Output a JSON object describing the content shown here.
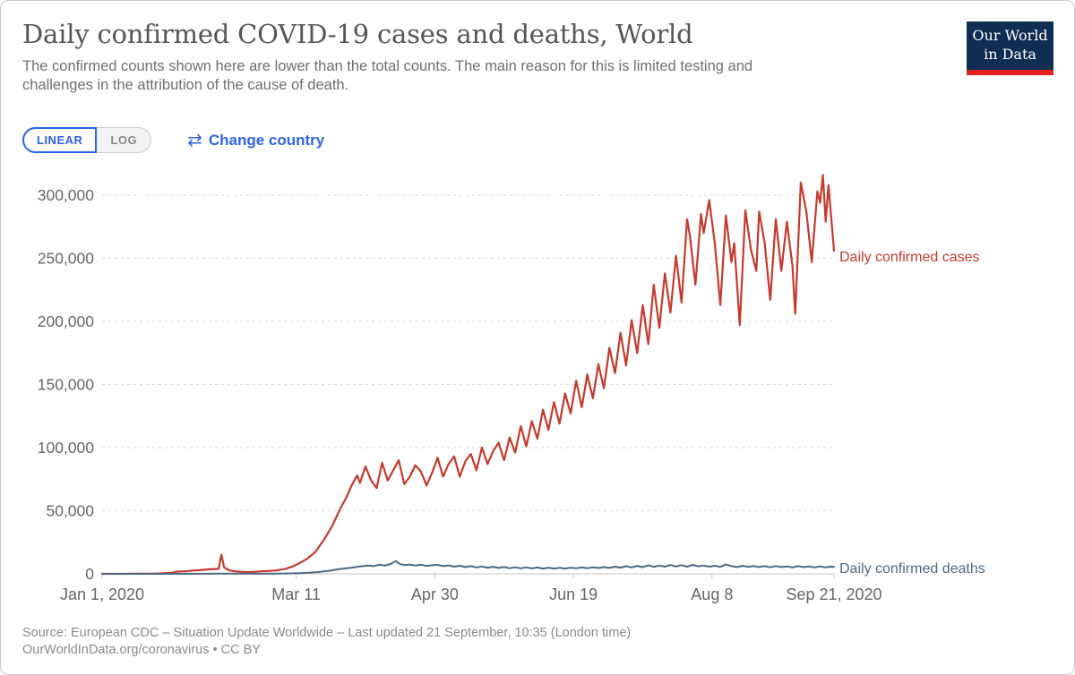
{
  "header": {
    "title": "Daily confirmed COVID-19 cases and deaths, World",
    "subtitle_lines": [
      "The confirmed counts shown here are lower than the total counts. The main reason for this is limited testing and",
      "challenges in the attribution of the cause of death."
    ]
  },
  "logo": {
    "line1": "Our World",
    "line2": "in Data"
  },
  "controls": {
    "linear_label": "LINEAR",
    "log_label": "LOG",
    "change_country_icon": "⇄",
    "change_country_label": "Change country"
  },
  "footer": {
    "line1": "Source: European CDC – Situation Update Worldwide – Last updated 21 September, 10:35 (London time)",
    "line2": "OurWorldInData.org/coronavirus • CC BY"
  },
  "colors": {
    "cases": "#c53a2d",
    "deaths": "#4c6a84",
    "accent_blue": "#2e62e6",
    "logo_navy": "#102d54",
    "logo_red": "#e2231f",
    "axis_text": "#666666",
    "gridline": "#dadada",
    "axis_line": "#c6c6c6"
  },
  "chart_data": {
    "type": "line",
    "title": "Daily confirmed COVID-19 cases and deaths, World",
    "x_label": "",
    "y_label": "",
    "x_range_days": [
      0,
      264
    ],
    "y_range": [
      0,
      320000
    ],
    "grid": "horizontal-dashed",
    "legend_position": "right-of-line-end",
    "x_axis": {
      "ticks": [
        {
          "day": 0,
          "label": "Jan 1, 2020"
        },
        {
          "day": 70,
          "label": "Mar 11"
        },
        {
          "day": 120,
          "label": "Apr 30"
        },
        {
          "day": 170,
          "label": "Jun 19"
        },
        {
          "day": 220,
          "label": "Aug 8"
        },
        {
          "day": 264,
          "label": "Sep 21, 2020"
        }
      ]
    },
    "y_axis": {
      "ticks": [
        {
          "value": 0,
          "label": "0"
        },
        {
          "value": 50000,
          "label": "50,000"
        },
        {
          "value": 100000,
          "label": "100,000"
        },
        {
          "value": 150000,
          "label": "150,000"
        },
        {
          "value": 200000,
          "label": "200,000"
        },
        {
          "value": 250000,
          "label": "250,000"
        },
        {
          "value": 300000,
          "label": "300,000"
        }
      ]
    },
    "series": [
      {
        "name": "Daily confirmed cases",
        "color": "#c53a2d",
        "stroke_width": 2.2,
        "points": [
          [
            0,
            0
          ],
          [
            6,
            0
          ],
          [
            12,
            50
          ],
          [
            18,
            150
          ],
          [
            22,
            450
          ],
          [
            25,
            700
          ],
          [
            27,
            1800
          ],
          [
            30,
            2000
          ],
          [
            33,
            2600
          ],
          [
            36,
            3100
          ],
          [
            39,
            3600
          ],
          [
            42,
            3900
          ],
          [
            43,
            15100
          ],
          [
            44,
            5100
          ],
          [
            46,
            2600
          ],
          [
            48,
            2000
          ],
          [
            51,
            1500
          ],
          [
            54,
            1400
          ],
          [
            57,
            1900
          ],
          [
            60,
            2300
          ],
          [
            63,
            2800
          ],
          [
            66,
            3800
          ],
          [
            69,
            6100
          ],
          [
            71,
            8200
          ],
          [
            74,
            12000
          ],
          [
            77,
            17500
          ],
          [
            80,
            27000
          ],
          [
            83,
            38000
          ],
          [
            86,
            52000
          ],
          [
            88,
            60000
          ],
          [
            90,
            70000
          ],
          [
            92,
            78000
          ],
          [
            93,
            72000
          ],
          [
            95,
            85000
          ],
          [
            97,
            74000
          ],
          [
            99,
            68000
          ],
          [
            101,
            88000
          ],
          [
            103,
            74000
          ],
          [
            105,
            82000
          ],
          [
            107,
            90000
          ],
          [
            109,
            71000
          ],
          [
            111,
            77000
          ],
          [
            113,
            86000
          ],
          [
            115,
            81000
          ],
          [
            117,
            70000
          ],
          [
            119,
            80000
          ],
          [
            121,
            92000
          ],
          [
            123,
            77000
          ],
          [
            125,
            87000
          ],
          [
            127,
            93000
          ],
          [
            129,
            77000
          ],
          [
            131,
            89000
          ],
          [
            133,
            95000
          ],
          [
            135,
            82000
          ],
          [
            137,
            100000
          ],
          [
            139,
            87000
          ],
          [
            141,
            97000
          ],
          [
            143,
            104000
          ],
          [
            145,
            90000
          ],
          [
            147,
            108000
          ],
          [
            149,
            96000
          ],
          [
            151,
            117000
          ],
          [
            153,
            101000
          ],
          [
            155,
            121000
          ],
          [
            157,
            107000
          ],
          [
            159,
            130000
          ],
          [
            161,
            114000
          ],
          [
            163,
            136000
          ],
          [
            165,
            119000
          ],
          [
            167,
            143000
          ],
          [
            169,
            127000
          ],
          [
            171,
            153000
          ],
          [
            173,
            132000
          ],
          [
            175,
            158000
          ],
          [
            177,
            139000
          ],
          [
            179,
            166000
          ],
          [
            181,
            147000
          ],
          [
            183,
            179000
          ],
          [
            185,
            159000
          ],
          [
            187,
            191000
          ],
          [
            189,
            165000
          ],
          [
            191,
            201000
          ],
          [
            193,
            175000
          ],
          [
            195,
            213000
          ],
          [
            197,
            182000
          ],
          [
            199,
            229000
          ],
          [
            201,
            195000
          ],
          [
            203,
            238000
          ],
          [
            205,
            207000
          ],
          [
            207,
            252000
          ],
          [
            209,
            215000
          ],
          [
            211,
            281000
          ],
          [
            212,
            268000
          ],
          [
            214,
            229000
          ],
          [
            216,
            285000
          ],
          [
            217,
            270000
          ],
          [
            219,
            296000
          ],
          [
            221,
            262000
          ],
          [
            223,
            213000
          ],
          [
            225,
            284000
          ],
          [
            227,
            247000
          ],
          [
            228,
            262000
          ],
          [
            230,
            197000
          ],
          [
            232,
            288000
          ],
          [
            234,
            257000
          ],
          [
            236,
            240000
          ],
          [
            237,
            287000
          ],
          [
            239,
            262000
          ],
          [
            241,
            217000
          ],
          [
            243,
            281000
          ],
          [
            245,
            240000
          ],
          [
            247,
            279000
          ],
          [
            249,
            244000
          ],
          [
            250,
            206000
          ],
          [
            252,
            310000
          ],
          [
            254,
            287000
          ],
          [
            256,
            247000
          ],
          [
            258,
            303000
          ],
          [
            259,
            294000
          ],
          [
            260,
            316000
          ],
          [
            261,
            279000
          ],
          [
            262,
            308000
          ],
          [
            264,
            256000
          ]
        ]
      },
      {
        "name": "Daily confirmed deaths",
        "color": "#4c6a84",
        "stroke_width": 2,
        "points": [
          [
            0,
            0
          ],
          [
            15,
            0
          ],
          [
            25,
            30
          ],
          [
            35,
            80
          ],
          [
            43,
            160
          ],
          [
            47,
            110
          ],
          [
            55,
            90
          ],
          [
            63,
            120
          ],
          [
            70,
            420
          ],
          [
            74,
            760
          ],
          [
            78,
            1400
          ],
          [
            82,
            2500
          ],
          [
            86,
            3900
          ],
          [
            90,
            4900
          ],
          [
            93,
            5800
          ],
          [
            96,
            6600
          ],
          [
            98,
            6100
          ],
          [
            100,
            7200
          ],
          [
            102,
            6500
          ],
          [
            104,
            7700
          ],
          [
            106,
            10100
          ],
          [
            107,
            8200
          ],
          [
            109,
            6900
          ],
          [
            111,
            7400
          ],
          [
            113,
            6600
          ],
          [
            115,
            7200
          ],
          [
            117,
            6300
          ],
          [
            119,
            6800
          ],
          [
            121,
            7100
          ],
          [
            123,
            6100
          ],
          [
            125,
            6700
          ],
          [
            127,
            5700
          ],
          [
            129,
            6400
          ],
          [
            131,
            5400
          ],
          [
            133,
            6100
          ],
          [
            135,
            5100
          ],
          [
            137,
            5800
          ],
          [
            139,
            4900
          ],
          [
            141,
            5600
          ],
          [
            143,
            4700
          ],
          [
            145,
            5400
          ],
          [
            147,
            4500
          ],
          [
            149,
            5200
          ],
          [
            151,
            4400
          ],
          [
            153,
            5100
          ],
          [
            155,
            4300
          ],
          [
            157,
            5000
          ],
          [
            159,
            4200
          ],
          [
            161,
            4900
          ],
          [
            163,
            4200
          ],
          [
            165,
            4800
          ],
          [
            167,
            4200
          ],
          [
            169,
            4900
          ],
          [
            171,
            4400
          ],
          [
            173,
            5100
          ],
          [
            175,
            4500
          ],
          [
            177,
            5200
          ],
          [
            179,
            4600
          ],
          [
            181,
            5400
          ],
          [
            183,
            4700
          ],
          [
            185,
            5700
          ],
          [
            187,
            4900
          ],
          [
            189,
            6000
          ],
          [
            191,
            5100
          ],
          [
            193,
            6300
          ],
          [
            195,
            5300
          ],
          [
            197,
            6800
          ],
          [
            199,
            5500
          ],
          [
            201,
            6600
          ],
          [
            203,
            5700
          ],
          [
            205,
            7000
          ],
          [
            207,
            5800
          ],
          [
            209,
            6900
          ],
          [
            211,
            5700
          ],
          [
            213,
            7100
          ],
          [
            215,
            5900
          ],
          [
            217,
            6600
          ],
          [
            219,
            5700
          ],
          [
            221,
            6400
          ],
          [
            223,
            5500
          ],
          [
            225,
            7400
          ],
          [
            227,
            6100
          ],
          [
            229,
            5300
          ],
          [
            231,
            6400
          ],
          [
            233,
            5500
          ],
          [
            235,
            6200
          ],
          [
            237,
            5400
          ],
          [
            239,
            6100
          ],
          [
            241,
            5200
          ],
          [
            243,
            6200
          ],
          [
            245,
            5400
          ],
          [
            247,
            5900
          ],
          [
            249,
            5100
          ],
          [
            251,
            6100
          ],
          [
            253,
            5300
          ],
          [
            255,
            5800
          ],
          [
            257,
            5100
          ],
          [
            259,
            5900
          ],
          [
            261,
            5200
          ],
          [
            263,
            5700
          ],
          [
            264,
            5500
          ]
        ]
      }
    ]
  }
}
